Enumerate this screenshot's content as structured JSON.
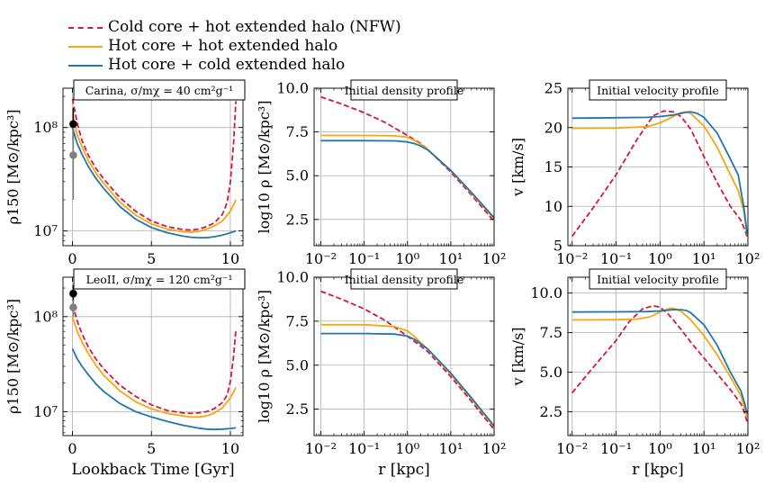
{
  "legend": {
    "items": [
      {
        "key": "cold_nfw",
        "label": "Cold core + hot extended halo (NFW)",
        "color": "#d6163f",
        "dash": true
      },
      {
        "key": "hot_hot",
        "label": "Hot core + hot extended halo",
        "color": "#f5a714",
        "dash": false
      },
      {
        "key": "hot_cold",
        "label": "Hot core + cold extended halo",
        "color": "#2376aa",
        "dash": false
      }
    ]
  },
  "chart_data": [
    {
      "id": "carina_rho150",
      "type": "line",
      "title": "Carina, σ/mχ = 40 cm²g⁻¹",
      "xlabel": "",
      "ylabel": "ρ150 [M⊙/kpc³]",
      "xscale": "linear",
      "yscale": "log",
      "xlim": [
        -0.6,
        10.8
      ],
      "ylim": [
        7200000.0,
        240000000.0
      ],
      "xticks": [
        0,
        5,
        10
      ],
      "xticklabels": [
        "0",
        "5",
        "10"
      ],
      "yticks": [
        10000000.0,
        100000000.0
      ],
      "yticklabels": [
        "10⁷",
        "10⁸"
      ],
      "series": [
        {
          "key": "cold_nfw",
          "x": [
            0,
            0.3,
            0.6,
            1,
            1.5,
            2,
            3,
            4,
            5,
            6,
            7,
            7.5,
            8,
            8.5,
            9,
            9.5,
            9.8,
            10.0,
            10.2,
            10.35
          ],
          "y": [
            190000000.0,
            110000000.0,
            75000000.0,
            54000000.0,
            40000000.0,
            31500000.0,
            21000000.0,
            15500000.0,
            12500000.0,
            11000000.0,
            10300000.0,
            10200000.0,
            10400000.0,
            11000000.0,
            12000000.0,
            14500000.0,
            19000000.0,
            30000000.0,
            70000000.0,
            180000000.0
          ]
        },
        {
          "key": "hot_hot",
          "x": [
            0,
            0.3,
            0.6,
            1,
            1.5,
            2,
            3,
            4,
            5,
            6,
            7,
            7.5,
            8,
            8.5,
            9,
            9.5,
            10.0,
            10.35
          ],
          "y": [
            135000000.0,
            85000000.0,
            65000000.0,
            48000000.0,
            36000000.0,
            28500000.0,
            19000000.0,
            14200000.0,
            11700000.0,
            10400000.0,
            9800000.0,
            9700000.0,
            9900000.0,
            10400000.0,
            11200000.0,
            12500000.0,
            15500000.0,
            20000000.0
          ]
        },
        {
          "key": "hot_cold",
          "x": [
            0,
            0.3,
            0.6,
            1,
            1.5,
            2,
            3,
            4,
            5,
            6,
            7,
            7.5,
            8,
            8.5,
            9,
            9.5,
            10.0,
            10.35
          ],
          "y": [
            100000000.0,
            70000000.0,
            55000000.0,
            42000000.0,
            32000000.0,
            25500000.0,
            17200000.0,
            13000000.0,
            10800000.0,
            9600000.0,
            8900000.0,
            8700000.0,
            8600000.0,
            8600000.0,
            8800000.0,
            9100000.0,
            9600000.0,
            10000000.0
          ]
        }
      ],
      "observations": [
        {
          "color": "#000000",
          "x": 0.05,
          "y": 108000000.0,
          "ylo": 75000000.0,
          "yhi": 155000000.0
        },
        {
          "color": "#808080",
          "x": 0.05,
          "y": 54000000.0,
          "ylo": 20000000.0,
          "yhi": 100000000.0
        }
      ]
    },
    {
      "id": "carina_density",
      "type": "line",
      "title": "Initial density profile",
      "xlabel": "",
      "ylabel": "log10 ρ [M⊙/kpc³]",
      "xscale": "log",
      "yscale": "linear",
      "xlim": [
        0.007,
        100
      ],
      "ylim": [
        1.0,
        10.0
      ],
      "xticks": [
        0.01,
        0.1,
        1,
        10,
        100
      ],
      "xticklabels": [
        "10⁻²",
        "10⁻¹",
        "10⁰",
        "10¹",
        "10²"
      ],
      "yticks": [
        2.5,
        5.0,
        7.5,
        10.0
      ],
      "yticklabels": [
        "2.5",
        "5.0",
        "7.5",
        "10.0"
      ],
      "series": [
        {
          "key": "cold_nfw",
          "x": [
            0.01,
            0.03,
            0.1,
            0.3,
            1,
            2,
            3,
            10,
            30,
            100
          ],
          "y": [
            9.5,
            9.1,
            8.6,
            8.05,
            7.3,
            6.85,
            6.5,
            5.2,
            3.9,
            2.4
          ]
        },
        {
          "key": "hot_hot",
          "x": [
            0.01,
            0.1,
            0.5,
            1,
            1.5,
            2,
            3,
            10,
            30,
            100
          ],
          "y": [
            7.3,
            7.3,
            7.28,
            7.2,
            7.0,
            6.8,
            6.5,
            5.3,
            4.0,
            2.55
          ]
        },
        {
          "key": "hot_cold",
          "x": [
            0.01,
            0.1,
            0.5,
            1,
            1.5,
            2,
            3,
            10,
            30,
            100
          ],
          "y": [
            7.0,
            7.0,
            6.99,
            6.93,
            6.82,
            6.7,
            6.45,
            5.3,
            4.05,
            2.6
          ]
        }
      ]
    },
    {
      "id": "carina_velocity",
      "type": "line",
      "title": "Initial velocity profile",
      "xlabel": "",
      "ylabel": "v [km/s]",
      "xscale": "log",
      "yscale": "linear",
      "xlim": [
        0.008,
        100
      ],
      "ylim": [
        5,
        25
      ],
      "xticks": [
        0.01,
        0.1,
        1,
        10,
        100
      ],
      "xticklabels": [
        "10⁻²",
        "10⁻¹",
        "10⁰",
        "10¹",
        "10²"
      ],
      "yticks": [
        5,
        10,
        15,
        20,
        25
      ],
      "yticklabels": [
        "5",
        "10",
        "15",
        "20",
        "25"
      ],
      "series": [
        {
          "key": "cold_nfw",
          "x": [
            0.01,
            0.03,
            0.1,
            0.3,
            0.7,
            1.2,
            2,
            3,
            5,
            10,
            20,
            40,
            70,
            85,
            95
          ],
          "y": [
            6.2,
            9.8,
            14.0,
            18.5,
            21.5,
            22.1,
            22.0,
            21.4,
            19.8,
            16.3,
            13.0,
            10.0,
            8.2,
            7.0,
            6.2
          ]
        },
        {
          "key": "hot_hot",
          "x": [
            0.01,
            0.1,
            0.5,
            1,
            2,
            3,
            4,
            5,
            10,
            20,
            40,
            60,
            80,
            90,
            95
          ],
          "y": [
            19.9,
            19.95,
            20.1,
            20.6,
            21.4,
            21.9,
            22.0,
            21.8,
            20.2,
            17.5,
            14.0,
            12.0,
            9.5,
            7.5,
            6.4
          ]
        },
        {
          "key": "hot_cold",
          "x": [
            0.01,
            0.1,
            0.5,
            1,
            2,
            3,
            4,
            5,
            7,
            10,
            20,
            40,
            60,
            80,
            90,
            95
          ],
          "y": [
            21.2,
            21.25,
            21.3,
            21.4,
            21.6,
            21.8,
            21.95,
            22.0,
            21.8,
            21.3,
            19.3,
            16.0,
            14.0,
            10.0,
            7.8,
            6.5
          ]
        }
      ]
    },
    {
      "id": "leoii_rho150",
      "type": "line",
      "title": "LeoII, σ/mχ = 120 cm²g⁻¹",
      "xlabel": "Lookback Time [Gyr]",
      "ylabel": "ρ150 [M⊙/kpc³]",
      "xscale": "linear",
      "yscale": "log",
      "xlim": [
        -0.6,
        10.8
      ],
      "ylim": [
        5600000.0,
        260000000.0
      ],
      "xticks": [
        0,
        5,
        10
      ],
      "xticklabels": [
        "0",
        "5",
        "10"
      ],
      "yticks": [
        10000000.0,
        100000000.0
      ],
      "yticklabels": [
        "10⁷",
        "10⁸"
      ],
      "series": [
        {
          "key": "cold_nfw",
          "x": [
            0,
            0.3,
            0.6,
            1,
            1.5,
            2,
            3,
            4,
            5,
            6,
            7,
            7.5,
            8,
            8.5,
            9,
            9.5,
            9.8,
            10.0,
            10.2,
            10.35
          ],
          "y": [
            135000000.0,
            90000000.0,
            66000000.0,
            48000000.0,
            35500000.0,
            28000000.0,
            19000000.0,
            14500000.0,
            11800000.0,
            10300000.0,
            9700000.0,
            9600000.0,
            9700000.0,
            10000000.0,
            10800000.0,
            12500000.0,
            15000000.0,
            21000000.0,
            38000000.0,
            73000000.0
          ]
        },
        {
          "key": "hot_hot",
          "x": [
            0,
            0.3,
            0.6,
            1,
            1.5,
            2,
            3,
            4,
            5,
            6,
            7,
            7.5,
            8,
            8.5,
            9,
            9.5,
            10.0,
            10.35
          ],
          "y": [
            100000000.0,
            70000000.0,
            54000000.0,
            41000000.0,
            30500000.0,
            24000000.0,
            16500000.0,
            12700000.0,
            10700000.0,
            9600000.0,
            9000000.0,
            8800000.0,
            8800000.0,
            9000000.0,
            9700000.0,
            11000000.0,
            14000000.0,
            18000000.0
          ]
        },
        {
          "key": "hot_cold",
          "x": [
            0,
            0.3,
            0.6,
            1,
            1.5,
            2,
            3,
            4,
            5,
            6,
            7,
            8,
            8.5,
            9,
            9.5,
            10.0,
            10.35
          ],
          "y": [
            46000000.0,
            36000000.0,
            30000000.0,
            24500000.0,
            19500000.0,
            16200000.0,
            12200000.0,
            10000000.0,
            8800000.0,
            7900000.0,
            7200000.0,
            6700000.0,
            6550000.0,
            6500000.0,
            6550000.0,
            6650000.0,
            6750000.0
          ]
        }
      ],
      "observations": [
        {
          "color": "#000000",
          "x": 0.05,
          "y": 175000000.0,
          "ylo": 145000000.0,
          "yhi": 215000000.0
        },
        {
          "color": "#808080",
          "x": 0.05,
          "y": 125000000.0,
          "ylo": 100000000.0,
          "yhi": 150000000.0
        }
      ]
    },
    {
      "id": "leoii_density",
      "type": "line",
      "title": "Initial density profile",
      "xlabel": "r [kpc]",
      "ylabel": "log10 ρ [M⊙/kpc³]",
      "xscale": "log",
      "yscale": "linear",
      "xlim": [
        0.007,
        100
      ],
      "ylim": [
        1.0,
        10.0
      ],
      "xticks": [
        0.01,
        0.1,
        1,
        10,
        100
      ],
      "xticklabels": [
        "10⁻²",
        "10⁻¹",
        "10⁰",
        "10¹",
        "10²"
      ],
      "yticks": [
        2.5,
        5.0,
        7.5,
        10.0
      ],
      "yticklabels": [
        "2.5",
        "5.0",
        "7.5",
        "10.0"
      ],
      "series": [
        {
          "key": "cold_nfw",
          "x": [
            0.01,
            0.03,
            0.1,
            0.3,
            1,
            2,
            3,
            10,
            30,
            100
          ],
          "y": [
            9.2,
            8.75,
            8.2,
            7.55,
            6.65,
            6.1,
            5.75,
            4.35,
            2.95,
            1.35
          ]
        },
        {
          "key": "hot_hot",
          "x": [
            0.01,
            0.1,
            0.5,
            1,
            1.5,
            2,
            3,
            10,
            30,
            100
          ],
          "y": [
            7.3,
            7.3,
            7.2,
            6.95,
            6.6,
            6.3,
            5.9,
            4.5,
            3.1,
            1.5
          ]
        },
        {
          "key": "hot_cold",
          "x": [
            0.01,
            0.1,
            0.5,
            1,
            1.5,
            2,
            3,
            10,
            30,
            100
          ],
          "y": [
            6.8,
            6.8,
            6.77,
            6.65,
            6.45,
            6.22,
            5.9,
            4.55,
            3.15,
            1.55
          ]
        }
      ]
    },
    {
      "id": "leoii_velocity",
      "type": "line",
      "title": "Initial velocity profile",
      "xlabel": "r [kpc]",
      "ylabel": "v [km/s]",
      "xscale": "log",
      "yscale": "linear",
      "xlim": [
        0.008,
        100
      ],
      "ylim": [
        1.0,
        11.0
      ],
      "xticks": [
        0.01,
        0.1,
        1,
        10,
        100
      ],
      "xticklabels": [
        "10⁻²",
        "10⁻¹",
        "10⁰",
        "10¹",
        "10²"
      ],
      "yticks": [
        2.5,
        5.0,
        7.5,
        10.0
      ],
      "yticklabels": [
        "2.5",
        "5.0",
        "7.5",
        "10.0"
      ],
      "series": [
        {
          "key": "cold_nfw",
          "x": [
            0.01,
            0.03,
            0.1,
            0.2,
            0.4,
            0.7,
            1,
            1.5,
            2,
            3,
            5,
            10,
            20,
            40,
            70,
            85,
            95
          ],
          "y": [
            3.7,
            5.3,
            7.0,
            8.2,
            9.0,
            9.2,
            9.1,
            8.7,
            8.3,
            7.7,
            6.9,
            5.9,
            4.9,
            3.9,
            3.0,
            2.4,
            1.9
          ]
        },
        {
          "key": "hot_hot",
          "x": [
            0.01,
            0.1,
            0.3,
            0.6,
            1,
            1.5,
            2,
            3,
            5,
            10,
            20,
            40,
            70,
            85,
            95
          ],
          "y": [
            8.3,
            8.32,
            8.35,
            8.5,
            8.8,
            9.0,
            9.05,
            8.85,
            8.3,
            7.3,
            6.1,
            4.7,
            3.5,
            2.7,
            2.2
          ]
        },
        {
          "key": "hot_cold",
          "x": [
            0.01,
            0.1,
            0.5,
            1,
            2,
            3,
            4,
            5,
            10,
            20,
            40,
            70,
            85,
            95
          ],
          "y": [
            8.8,
            8.81,
            8.83,
            8.87,
            8.95,
            8.95,
            8.9,
            8.75,
            8.0,
            6.7,
            5.0,
            3.8,
            3.0,
            2.4
          ]
        }
      ]
    }
  ]
}
